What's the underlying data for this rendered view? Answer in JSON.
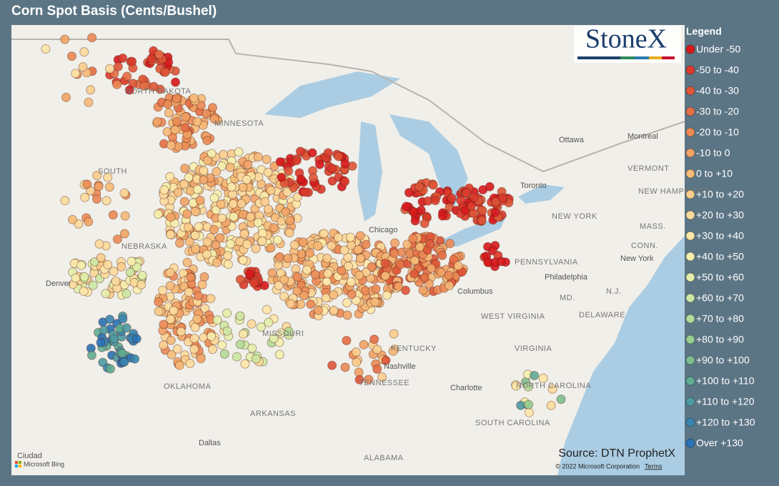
{
  "title": "Corn Spot Basis (Cents/Bushel)",
  "logo": "StoneX",
  "legend": {
    "title": "Legend",
    "items": [
      {
        "label": "Under -50",
        "color": "#d7191c"
      },
      {
        "label": "-50 to -40",
        "color": "#db3a2a"
      },
      {
        "label": "-40 to -30",
        "color": "#df5637"
      },
      {
        "label": "-30 to -20",
        "color": "#e56f45"
      },
      {
        "label": "-20 to -10",
        "color": "#ec8a55"
      },
      {
        "label": "-10 to 0",
        "color": "#f2a365"
      },
      {
        "label": "0 to +10",
        "color": "#f7bb78"
      },
      {
        "label": "+10 to +20",
        "color": "#fbcd8c"
      },
      {
        "label": "+20 to +30",
        "color": "#fddb9c"
      },
      {
        "label": "+30 to +40",
        "color": "#fee8a8"
      },
      {
        "label": "+40 to +50",
        "color": "#f6f0ae"
      },
      {
        "label": "+50 to +60",
        "color": "#e3efaa"
      },
      {
        "label": "+60 to +70",
        "color": "#cde8a3"
      },
      {
        "label": "+70 to +80",
        "color": "#b4dc9a"
      },
      {
        "label": "+80 to +90",
        "color": "#98cf93"
      },
      {
        "label": "+90 to +100",
        "color": "#7dbf90"
      },
      {
        "label": "+100 to +110",
        "color": "#62ad93"
      },
      {
        "label": "+110 to +120",
        "color": "#4d9aa2"
      },
      {
        "label": "+120 to +130",
        "color": "#3a86b0"
      },
      {
        "label": "Over +130",
        "color": "#2b72b6"
      }
    ]
  },
  "map_labels": [
    "NORTH DAKOTA",
    "MINNESOTA",
    "SOUTH",
    "NEBRASKA",
    "MISSOURI",
    "KENTUCKY",
    "TENNESSEE",
    "OKLAHOMA",
    "ARKANSAS",
    "ALABAMA",
    "WEST VIRGINIA",
    "VIRGINIA",
    "NORTH CAROLINA",
    "SOUTH CAROLINA",
    "PENNSYLVANIA",
    "NEW YORK",
    "VERMONT",
    "NEW HAMPSHIRE",
    "MASS.",
    "CONN.",
    "DELAWARE",
    "MD.",
    "N.J."
  ],
  "cities": [
    "Chicago",
    "Columbus",
    "Nashville",
    "Charlotte",
    "Philadelphia",
    "New York",
    "Toronto",
    "Ottawa",
    "Montreal",
    "Denver",
    "Dallas",
    "Ciudad"
  ],
  "source": "Source: DTN ProphetX",
  "copyright": "© 2022 Microsoft Corporation",
  "terms": "Terms",
  "bing": "Microsoft Bing"
}
